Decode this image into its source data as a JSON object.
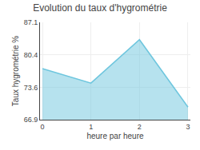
{
  "chart_data": {
    "type": "area",
    "title": "Evolution du taux d'hygrométrie",
    "xlabel": "heure par heure",
    "ylabel": "Taux hygrométrie %",
    "x": [
      0,
      1,
      2,
      3
    ],
    "values": [
      77.5,
      74.5,
      83.5,
      69.5
    ],
    "color": "#6ec6de",
    "xlim": [
      -0.05,
      3.05
    ],
    "xticks": [
      0,
      1,
      2,
      3
    ],
    "ylim": [
      66.9,
      87.1
    ],
    "yticks": [
      66.9,
      73.6,
      80.4,
      87.1
    ],
    "grid": true
  }
}
